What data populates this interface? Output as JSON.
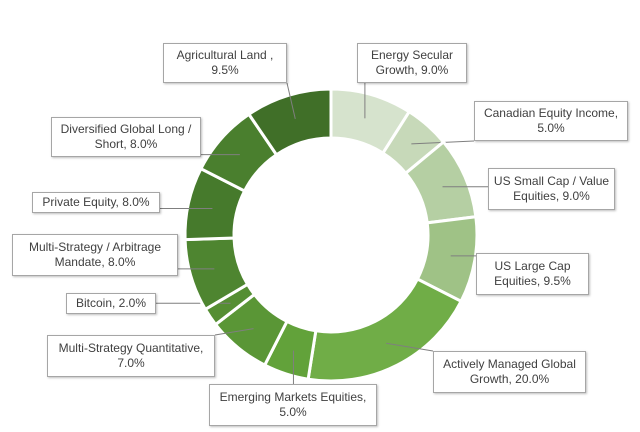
{
  "chart_data": {
    "type": "pie",
    "variant": "donut",
    "title": "",
    "slices": [
      {
        "label": "Energy Secular Growth, 9.0%",
        "category": "Energy Secular Growth",
        "value": 9.0,
        "color": "#d6e3cd"
      },
      {
        "label": "Canadian Equity Income, 5.0%",
        "category": "Canadian Equity Income",
        "value": 5.0,
        "color": "#c7d9b9"
      },
      {
        "label": "US Small Cap / Value Equities, 9.0%",
        "category": "US Small Cap / Value Equities",
        "value": 9.0,
        "color": "#b5cfa3"
      },
      {
        "label": "US Large Cap Equities, 9.5%",
        "category": "US Large Cap Equities",
        "value": 9.5,
        "color": "#9fc286"
      },
      {
        "label": "Actively Managed Global Growth, 20.0%",
        "category": "Actively Managed Global Growth",
        "value": 20.0,
        "color": "#70ad47"
      },
      {
        "label": "Emerging Markets Equities, 5.0%",
        "category": "Emerging Markets Equities",
        "value": 5.0,
        "color": "#62a23a"
      },
      {
        "label": "Multi-Strategy Quantitative, 7.0%",
        "category": "Multi-Strategy Quantitative",
        "value": 7.0,
        "color": "#5a9636"
      },
      {
        "label": "Bitcoin, 2.0%",
        "category": "Bitcoin",
        "value": 2.0,
        "color": "#558e33"
      },
      {
        "label": "Multi-Strategy / Arbitrage Mandate, 8.0%",
        "category": "Multi-Strategy / Arbitrage Mandate",
        "value": 8.0,
        "color": "#4e8530"
      },
      {
        "label": "Private Equity, 8.0%",
        "category": "Private Equity",
        "value": 8.0,
        "color": "#467a2c"
      },
      {
        "label": "Diversified Global Long / Short, 8.0%",
        "category": "Diversified Global Long / Short",
        "value": 8.0,
        "color": "#4a7f2e"
      },
      {
        "label": "Agricultural Land , 9.5%",
        "category": "Agricultural Land ",
        "value": 9.5,
        "color": "#406f28"
      }
    ],
    "start_angle": "12 o'clock",
    "direction": "clockwise",
    "legend": "none",
    "data_labels": "callouts with leader lines"
  }
}
